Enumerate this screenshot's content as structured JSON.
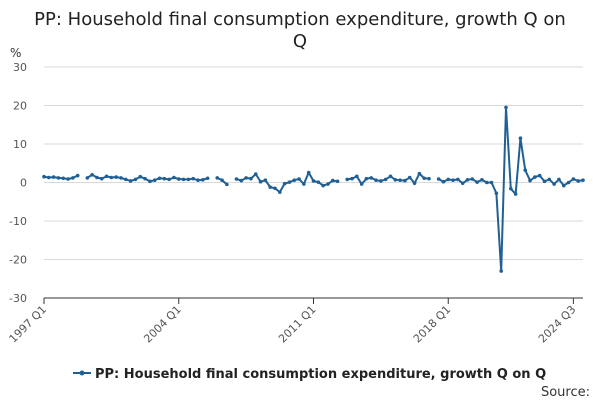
{
  "chart_data": {
    "type": "line",
    "title": "PP: Household final consumption expenditure, growth Q on Q",
    "ylabel": "%",
    "ylim": [
      -30,
      30
    ],
    "yticks": [
      -30,
      -20,
      -10,
      0,
      10,
      20,
      30
    ],
    "xtick_labels": [
      "1997 Q1",
      "2004 Q1",
      "2011 Q1",
      "2018 Q1",
      "2024 Q3"
    ],
    "xtick_indices": [
      0,
      28,
      56,
      84,
      110
    ],
    "grid": true,
    "legend_position": "bottom",
    "colors": {
      "series": "#206095",
      "grid": "#d9d9d9",
      "axis": "#333333"
    },
    "series": [
      {
        "name": "PP: Household final consumption expenditure, growth Q on Q",
        "values": [
          1.5,
          1.3,
          1.4,
          1.2,
          1.1,
          0.9,
          1.2,
          1.8,
          null,
          1.2,
          2.0,
          1.3,
          1.0,
          1.6,
          1.3,
          1.4,
          1.2,
          0.8,
          0.4,
          0.8,
          1.5,
          1.0,
          0.3,
          0.6,
          1.1,
          1.0,
          0.8,
          1.3,
          0.9,
          0.8,
          0.8,
          1.0,
          0.6,
          0.7,
          1.1,
          null,
          1.2,
          0.6,
          -0.5,
          null,
          0.9,
          0.5,
          1.2,
          1.0,
          2.2,
          0.2,
          0.6,
          -1.2,
          -1.5,
          -2.5,
          -0.3,
          0.1,
          0.6,
          0.9,
          -0.4,
          2.6,
          0.4,
          0.1,
          -0.8,
          -0.4,
          0.5,
          0.3,
          null,
          0.8,
          1.0,
          1.6,
          -0.4,
          1.0,
          1.2,
          0.6,
          0.4,
          0.8,
          1.6,
          0.7,
          0.6,
          0.5,
          1.3,
          -0.2,
          2.3,
          1.1,
          1.0,
          null,
          0.9,
          0.2,
          0.8,
          0.6,
          0.8,
          -0.2,
          0.7,
          0.9,
          0.1,
          0.7,
          0.0,
          0.0,
          -2.8,
          -23.0,
          19.5,
          -1.6,
          -3.0,
          11.5,
          3.2,
          0.5,
          1.4,
          1.8,
          0.3,
          0.8,
          -0.4,
          0.8,
          -0.8,
          0.0,
          0.9,
          0.4,
          0.6
        ]
      }
    ],
    "source_label": "Source:"
  }
}
